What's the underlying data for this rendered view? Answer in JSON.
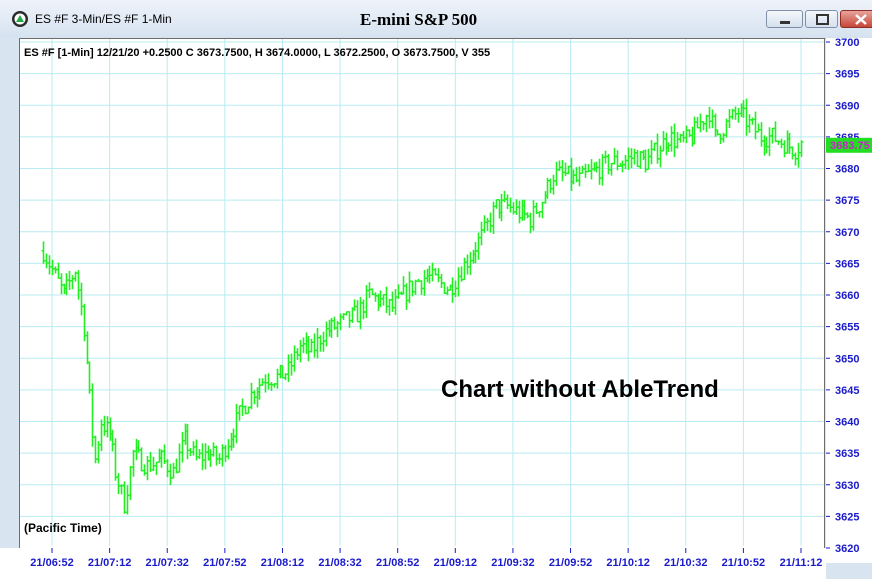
{
  "window": {
    "title": "ES #F 3-Min/ES #F 1-Min",
    "chart_title": "E-mini S&P 500"
  },
  "info_line": "ES #F [1-Min] 12/21/20  +0.2500  C 3673.7500,  H 3674.0000,  L 3672.2500,  O 3673.7500,  V 355",
  "annotation": "Chart without AbleTrend",
  "timezone_label": "(Pacific Time)",
  "colors": {
    "bars": "#22ee22",
    "grid": "#b9ecf2",
    "axis_text": "#1a1acc",
    "last_price_bg": "#22dd22",
    "last_price_text": "#cc22cc"
  },
  "chart_data": {
    "type": "ohlc",
    "symbol": "ES #F",
    "interval": "1-Min",
    "ylim": [
      3620,
      3700
    ],
    "y_ticks": [
      3700,
      3695,
      3690,
      3685,
      3680,
      3675,
      3670,
      3665,
      3660,
      3655,
      3650,
      3645,
      3640,
      3635,
      3630,
      3625,
      3620
    ],
    "x_ticks": [
      "21/06:52",
      "21/07:12",
      "21/07:32",
      "21/07:52",
      "21/08:12",
      "21/08:32",
      "21/08:52",
      "21/09:12",
      "21/09:32",
      "21/09:52",
      "21/10:12",
      "21/10:32",
      "21/10:52",
      "21/11:12"
    ],
    "last_price_label": "3683.75",
    "last_price": 3683.75,
    "grid": true,
    "close_path": [
      [
        "21/06:49",
        3667
      ],
      [
        "21/06:52",
        3664
      ],
      [
        "21/06:56",
        3660
      ],
      [
        "21/07:00",
        3664
      ],
      [
        "21/07:03",
        3655
      ],
      [
        "21/07:06",
        3638
      ],
      [
        "21/07:07",
        3634
      ],
      [
        "21/07:09",
        3640
      ],
      [
        "21/07:12",
        3638
      ],
      [
        "21/07:14",
        3632
      ],
      [
        "21/07:17",
        3627
      ],
      [
        "21/07:20",
        3635
      ],
      [
        "21/07:25",
        3633
      ],
      [
        "21/07:30",
        3634
      ],
      [
        "21/07:34",
        3632
      ],
      [
        "21/07:38",
        3637
      ],
      [
        "21/07:42",
        3634
      ],
      [
        "21/07:46",
        3635
      ],
      [
        "21/07:50",
        3634
      ],
      [
        "21/07:54",
        3638
      ],
      [
        "21/07:58",
        3642
      ],
      [
        "21/08:02",
        3645
      ],
      [
        "21/08:06",
        3647
      ],
      [
        "21/08:10",
        3647
      ],
      [
        "21/08:14",
        3648
      ],
      [
        "21/08:18",
        3652
      ],
      [
        "21/08:22",
        3651
      ],
      [
        "21/08:26",
        3654
      ],
      [
        "21/08:30",
        3655
      ],
      [
        "21/08:34",
        3656
      ],
      [
        "21/08:38",
        3657
      ],
      [
        "21/08:42",
        3660
      ],
      [
        "21/08:46",
        3659
      ],
      [
        "21/08:50",
        3658
      ],
      [
        "21/08:54",
        3660
      ],
      [
        "21/08:58",
        3662
      ],
      [
        "21/09:02",
        3663
      ],
      [
        "21/09:06",
        3662
      ],
      [
        "21/09:10",
        3661
      ],
      [
        "21/09:14",
        3664
      ],
      [
        "21/09:18",
        3667
      ],
      [
        "21/09:22",
        3670
      ],
      [
        "21/09:26",
        3674
      ],
      [
        "21/09:30",
        3674
      ],
      [
        "21/09:34",
        3673
      ],
      [
        "21/09:38",
        3672
      ],
      [
        "21/09:42",
        3675
      ],
      [
        "21/09:46",
        3679
      ],
      [
        "21/09:50",
        3679
      ],
      [
        "21/09:54",
        3678
      ],
      [
        "21/09:58",
        3679
      ],
      [
        "21/10:02",
        3680
      ],
      [
        "21/10:06",
        3681
      ],
      [
        "21/10:10",
        3681
      ],
      [
        "21/10:14",
        3682
      ],
      [
        "21/10:18",
        3681
      ],
      [
        "21/10:22",
        3683
      ],
      [
        "21/10:26",
        3685
      ],
      [
        "21/10:30",
        3684
      ],
      [
        "21/10:34",
        3685
      ],
      [
        "21/10:38",
        3688
      ],
      [
        "21/10:40",
        3689
      ],
      [
        "21/10:42",
        3685
      ],
      [
        "21/10:46",
        3687
      ],
      [
        "21/10:50",
        3689
      ],
      [
        "21/10:54",
        3687
      ],
      [
        "21/10:58",
        3685
      ],
      [
        "21/11:02",
        3685
      ],
      [
        "21/11:06",
        3684
      ],
      [
        "21/11:10",
        3683
      ],
      [
        "21/11:12",
        3684
      ]
    ]
  }
}
